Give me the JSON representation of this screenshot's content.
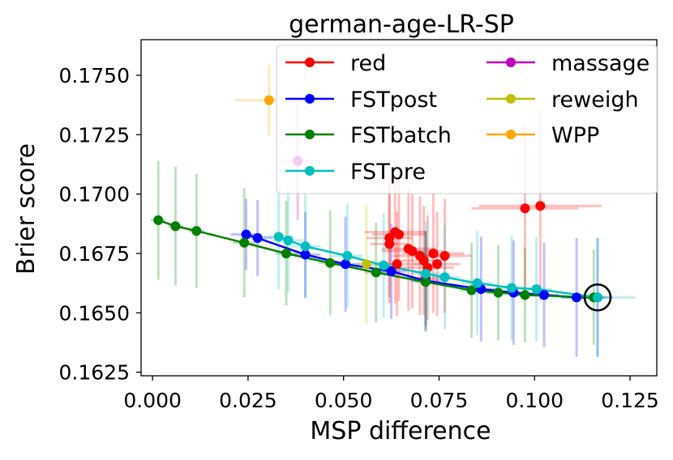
{
  "chart_data": {
    "type": "scatter",
    "title": "german-age-LR-SP",
    "xlabel": "MSP difference",
    "ylabel": "Brier score",
    "xlim": [
      -0.003,
      0.132
    ],
    "ylim": [
      0.16235,
      0.1765
    ],
    "xticks": [
      0.0,
      0.025,
      0.05,
      0.075,
      0.1,
      0.125
    ],
    "xtick_labels": [
      "0.000",
      "0.025",
      "0.050",
      "0.075",
      "0.100",
      "0.125"
    ],
    "yticks": [
      0.1625,
      0.165,
      0.1675,
      0.17,
      0.1725,
      0.175
    ],
    "ytick_labels": [
      "0.1625",
      "0.1650",
      "0.1675",
      "0.1700",
      "0.1725",
      "0.1750"
    ],
    "legend_position": "top-right",
    "series": [
      {
        "name": "red",
        "color": "#ff0000",
        "connected": false,
        "points": [
          {
            "x": 0.062,
            "y": 0.16815,
            "xerr": 0.006,
            "yerr": 0.0025
          },
          {
            "x": 0.0635,
            "y": 0.1684,
            "xerr": 0.008,
            "yerr": 0.003
          },
          {
            "x": 0.0645,
            "y": 0.1683,
            "xerr": 0.007,
            "yerr": 0.0028
          },
          {
            "x": 0.062,
            "y": 0.1679,
            "xerr": 0.005,
            "yerr": 0.0025
          },
          {
            "x": 0.064,
            "y": 0.16705,
            "xerr": 0.006,
            "yerr": 0.0022
          },
          {
            "x": 0.067,
            "y": 0.1677,
            "xerr": 0.007,
            "yerr": 0.0026
          },
          {
            "x": 0.068,
            "y": 0.1676,
            "xerr": 0.008,
            "yerr": 0.0024
          },
          {
            "x": 0.07,
            "y": 0.1674,
            "xerr": 0.007,
            "yerr": 0.0025
          },
          {
            "x": 0.071,
            "y": 0.1672,
            "xerr": 0.006,
            "yerr": 0.0023
          },
          {
            "x": 0.072,
            "y": 0.1669,
            "xerr": 0.007,
            "yerr": 0.0022
          },
          {
            "x": 0.0735,
            "y": 0.1675,
            "xerr": 0.008,
            "yerr": 0.0025
          },
          {
            "x": 0.0715,
            "y": 0.16645,
            "xerr": 0.005,
            "yerr": 0.002
          },
          {
            "x": 0.0745,
            "y": 0.16705,
            "xerr": 0.006,
            "yerr": 0.0022
          },
          {
            "x": 0.0765,
            "y": 0.1674,
            "xerr": 0.007,
            "yerr": 0.0024
          },
          {
            "x": 0.0975,
            "y": 0.1694,
            "xerr": 0.014,
            "yerr": 0.0035
          },
          {
            "x": 0.1015,
            "y": 0.1695,
            "xerr": 0.016,
            "yerr": 0.004
          }
        ]
      },
      {
        "name": "FSTpost",
        "color": "#0000ff",
        "connected": true,
        "points": [
          {
            "x": 0.0245,
            "y": 0.1683,
            "xerr": 0.004,
            "yerr": 0.0015
          },
          {
            "x": 0.0275,
            "y": 0.16815,
            "xerr": 0.004,
            "yerr": 0.0016
          },
          {
            "x": 0.04,
            "y": 0.16745,
            "xerr": 0.004,
            "yerr": 0.0018
          },
          {
            "x": 0.0505,
            "y": 0.16705,
            "xerr": 0.004,
            "yerr": 0.002
          },
          {
            "x": 0.0625,
            "y": 0.16675,
            "xerr": 0.004,
            "yerr": 0.002
          },
          {
            "x": 0.0715,
            "y": 0.16635,
            "xerr": 0.004,
            "yerr": 0.0021
          },
          {
            "x": 0.086,
            "y": 0.166,
            "xerr": 0.004,
            "yerr": 0.0022
          },
          {
            "x": 0.0945,
            "y": 0.16585,
            "xerr": 0.004,
            "yerr": 0.0022
          },
          {
            "x": 0.1025,
            "y": 0.16575,
            "xerr": 0.004,
            "yerr": 0.0022
          },
          {
            "x": 0.111,
            "y": 0.16565,
            "xerr": 0.004,
            "yerr": 0.0025
          },
          {
            "x": 0.1165,
            "y": 0.16565,
            "xerr": 0.004,
            "yerr": 0.0025
          }
        ]
      },
      {
        "name": "FSTbatch",
        "color": "#008000",
        "connected": true,
        "points": [
          {
            "x": 0.0015,
            "y": 0.1689,
            "xerr": 0.002,
            "yerr": 0.0025
          },
          {
            "x": 0.006,
            "y": 0.16865,
            "xerr": 0.002,
            "yerr": 0.0025
          },
          {
            "x": 0.0115,
            "y": 0.16845,
            "xerr": 0.002,
            "yerr": 0.0024
          },
          {
            "x": 0.024,
            "y": 0.16795,
            "xerr": 0.003,
            "yerr": 0.0023
          },
          {
            "x": 0.035,
            "y": 0.1675,
            "xerr": 0.003,
            "yerr": 0.0022
          },
          {
            "x": 0.0465,
            "y": 0.1671,
            "xerr": 0.003,
            "yerr": 0.0022
          },
          {
            "x": 0.0585,
            "y": 0.1667,
            "xerr": 0.003,
            "yerr": 0.0021
          },
          {
            "x": 0.0715,
            "y": 0.1663,
            "xerr": 0.003,
            "yerr": 0.0021
          },
          {
            "x": 0.0835,
            "y": 0.16595,
            "xerr": 0.003,
            "yerr": 0.002
          },
          {
            "x": 0.0905,
            "y": 0.16585,
            "xerr": 0.003,
            "yerr": 0.002
          },
          {
            "x": 0.0975,
            "y": 0.16575,
            "xerr": 0.003,
            "yerr": 0.002
          },
          {
            "x": 0.1155,
            "y": 0.16565,
            "xerr": 0.003,
            "yerr": 0.002
          }
        ]
      },
      {
        "name": "FSTpre",
        "color": "#00bfbf",
        "connected": true,
        "points": [
          {
            "x": 0.033,
            "y": 0.1682,
            "xerr": 0.004,
            "yerr": 0.0022
          },
          {
            "x": 0.0355,
            "y": 0.16805,
            "xerr": 0.004,
            "yerr": 0.0022
          },
          {
            "x": 0.04,
            "y": 0.1678,
            "xerr": 0.004,
            "yerr": 0.0022
          },
          {
            "x": 0.051,
            "y": 0.1674,
            "xerr": 0.004,
            "yerr": 0.0022
          },
          {
            "x": 0.0605,
            "y": 0.167,
            "xerr": 0.004,
            "yerr": 0.0022
          },
          {
            "x": 0.0715,
            "y": 0.16665,
            "xerr": 0.004,
            "yerr": 0.0022
          },
          {
            "x": 0.0765,
            "y": 0.1665,
            "xerr": 0.004,
            "yerr": 0.0022
          },
          {
            "x": 0.085,
            "y": 0.16625,
            "xerr": 0.004,
            "yerr": 0.0022
          },
          {
            "x": 0.094,
            "y": 0.16605,
            "xerr": 0.004,
            "yerr": 0.0022
          },
          {
            "x": 0.1005,
            "y": 0.166,
            "xerr": 0.004,
            "yerr": 0.0022
          },
          {
            "x": 0.1165,
            "y": 0.16565,
            "xerr": 0.01,
            "yerr": 0.0025
          }
        ]
      },
      {
        "name": "massage",
        "color": "#bf00bf",
        "connected": false,
        "points": [
          {
            "x": 0.038,
            "y": 0.1714,
            "xerr": 0.003,
            "yerr": 0.0025
          }
        ]
      },
      {
        "name": "reweigh",
        "color": "#bfbf00",
        "connected": false,
        "points": [
          {
            "x": 0.056,
            "y": 0.16705,
            "xerr": 0.006,
            "yerr": 0.0025
          }
        ]
      },
      {
        "name": "WPP",
        "color": "#ffa500",
        "connected": false,
        "points": [
          {
            "x": 0.0305,
            "y": 0.17395,
            "xerr": 0.009,
            "yerr": 0.0015
          }
        ]
      }
    ],
    "highlight": {
      "x": 0.1165,
      "y": 0.16565,
      "marker": "circle"
    }
  }
}
